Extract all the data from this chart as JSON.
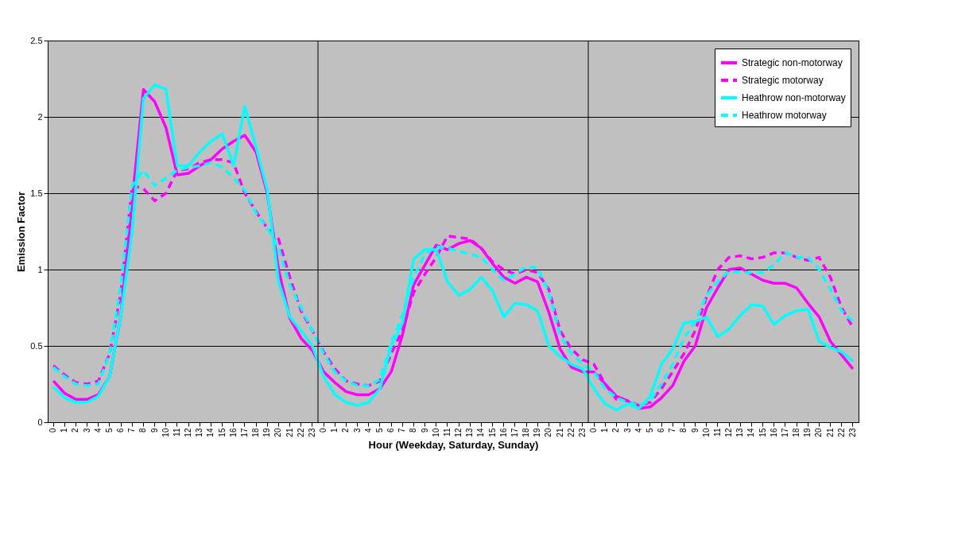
{
  "chart_data": {
    "type": "line",
    "xlabel": "Hour (Weekday, Saturday, Sunday)",
    "ylabel": "Emission Factor",
    "categories": [
      "0",
      "1",
      "2",
      "3",
      "4",
      "5",
      "6",
      "7",
      "8",
      "9",
      "10",
      "11",
      "12",
      "13",
      "14",
      "15",
      "16",
      "17",
      "18",
      "19",
      "20",
      "21",
      "22",
      "23",
      "0",
      "1",
      "2",
      "3",
      "4",
      "5",
      "6",
      "7",
      "8",
      "9",
      "10",
      "11",
      "12",
      "13",
      "14",
      "15",
      "16",
      "17",
      "18",
      "19",
      "20",
      "21",
      "22",
      "23",
      "0",
      "1",
      "2",
      "3",
      "4",
      "5",
      "6",
      "7",
      "8",
      "9",
      "10",
      "11",
      "12",
      "13",
      "14",
      "15",
      "16",
      "17",
      "18",
      "19",
      "20",
      "21",
      "22",
      "23"
    ],
    "ylim": [
      0,
      2.5
    ],
    "yticks": [
      0,
      0.5,
      1,
      1.5,
      2,
      2.5
    ],
    "grid": true,
    "legend": "top right",
    "marker": "none",
    "series": [
      {
        "name": "Strategic non-motorway",
        "color": "#ff00ff",
        "line_style": "solid",
        "values": [
          0.27,
          0.19,
          0.15,
          0.15,
          0.18,
          0.3,
          0.7,
          1.45,
          2.18,
          2.1,
          1.93,
          1.62,
          1.63,
          1.68,
          1.72,
          1.79,
          1.84,
          1.88,
          1.77,
          1.5,
          1.0,
          0.68,
          0.55,
          0.47,
          0.33,
          0.26,
          0.2,
          0.18,
          0.18,
          0.22,
          0.33,
          0.57,
          0.9,
          1.03,
          1.16,
          1.13,
          1.17,
          1.19,
          1.14,
          1.04,
          0.95,
          0.91,
          0.95,
          0.92,
          0.72,
          0.48,
          0.36,
          0.33,
          0.33,
          0.25,
          0.17,
          0.14,
          0.09,
          0.1,
          0.16,
          0.24,
          0.4,
          0.5,
          0.75,
          0.88,
          1.0,
          1.01,
          0.97,
          0.93,
          0.91,
          0.91,
          0.88,
          0.78,
          0.69,
          0.53,
          0.44,
          0.35
        ]
      },
      {
        "name": "Strategic motorway",
        "color": "#ff00ff",
        "line_style": "dashed",
        "values": [
          0.37,
          0.31,
          0.26,
          0.25,
          0.27,
          0.45,
          0.85,
          1.55,
          1.53,
          1.45,
          1.5,
          1.65,
          1.66,
          1.7,
          1.72,
          1.72,
          1.7,
          1.5,
          1.38,
          1.27,
          1.2,
          0.95,
          0.73,
          0.6,
          0.46,
          0.35,
          0.27,
          0.25,
          0.24,
          0.27,
          0.45,
          0.6,
          0.85,
          0.97,
          1.08,
          1.22,
          1.21,
          1.2,
          1.14,
          1.05,
          1.0,
          0.97,
          1.0,
          0.98,
          0.87,
          0.6,
          0.48,
          0.41,
          0.38,
          0.25,
          0.15,
          0.14,
          0.11,
          0.13,
          0.22,
          0.33,
          0.45,
          0.6,
          0.82,
          1.0,
          1.08,
          1.09,
          1.07,
          1.08,
          1.11,
          1.11,
          1.08,
          1.06,
          1.08,
          0.95,
          0.75,
          0.62
        ]
      },
      {
        "name": "Heathrow non-motorway",
        "color": "#00ffff",
        "line_style": "solid",
        "values": [
          0.23,
          0.16,
          0.13,
          0.13,
          0.17,
          0.3,
          0.7,
          1.25,
          2.12,
          2.21,
          2.18,
          1.68,
          1.68,
          1.77,
          1.84,
          1.89,
          1.68,
          2.07,
          1.8,
          1.52,
          0.92,
          0.69,
          0.6,
          0.5,
          0.3,
          0.18,
          0.13,
          0.11,
          0.13,
          0.22,
          0.5,
          0.65,
          1.07,
          1.13,
          1.13,
          0.92,
          0.83,
          0.87,
          0.95,
          0.86,
          0.69,
          0.78,
          0.77,
          0.73,
          0.5,
          0.43,
          0.38,
          0.35,
          0.22,
          0.12,
          0.08,
          0.12,
          0.09,
          0.17,
          0.38,
          0.48,
          0.65,
          0.66,
          0.69,
          0.56,
          0.61,
          0.7,
          0.77,
          0.76,
          0.64,
          0.7,
          0.73,
          0.74,
          0.53,
          0.49,
          0.46,
          0.4
        ]
      },
      {
        "name": "Heathrow motorway",
        "color": "#00ffff",
        "line_style": "dashed",
        "values": [
          0.36,
          0.3,
          0.25,
          0.24,
          0.25,
          0.45,
          0.9,
          1.55,
          1.65,
          1.55,
          1.6,
          1.65,
          1.67,
          1.68,
          1.7,
          1.67,
          1.6,
          1.52,
          1.37,
          1.27,
          1.14,
          0.9,
          0.75,
          0.6,
          0.45,
          0.33,
          0.27,
          0.24,
          0.24,
          0.28,
          0.52,
          0.7,
          0.95,
          1.1,
          1.15,
          1.14,
          1.12,
          1.1,
          1.08,
          1.0,
          0.93,
          0.97,
          1.02,
          1.01,
          0.85,
          0.57,
          0.45,
          0.38,
          0.33,
          0.22,
          0.16,
          0.13,
          0.11,
          0.14,
          0.25,
          0.38,
          0.55,
          0.66,
          0.83,
          0.92,
          0.99,
          0.98,
          0.98,
          0.98,
          1.03,
          1.11,
          1.08,
          1.08,
          1.0,
          0.87,
          0.73,
          0.66
        ]
      }
    ]
  }
}
